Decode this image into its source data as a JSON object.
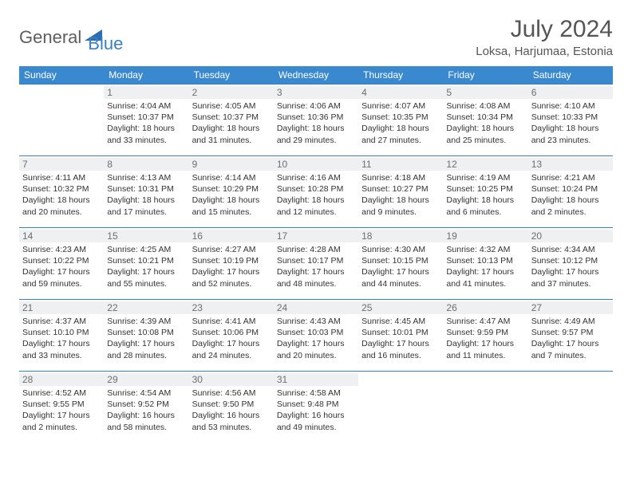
{
  "logo": {
    "text1": "General",
    "text2": "Blue"
  },
  "title": "July 2024",
  "location": "Loksa, Harjumaa, Estonia",
  "colors": {
    "header_bg": "#3a89cf",
    "row_border": "#3a7fc4",
    "daynum_bg": "#eef0f1",
    "logo_gray": "#5e5e5e",
    "logo_blue": "#3a7fc4"
  },
  "weekdays": [
    "Sunday",
    "Monday",
    "Tuesday",
    "Wednesday",
    "Thursday",
    "Friday",
    "Saturday"
  ],
  "weeks": [
    [
      null,
      {
        "n": "1",
        "sr": "4:04 AM",
        "ss": "10:37 PM",
        "dl": "18 hours and 33 minutes."
      },
      {
        "n": "2",
        "sr": "4:05 AM",
        "ss": "10:37 PM",
        "dl": "18 hours and 31 minutes."
      },
      {
        "n": "3",
        "sr": "4:06 AM",
        "ss": "10:36 PM",
        "dl": "18 hours and 29 minutes."
      },
      {
        "n": "4",
        "sr": "4:07 AM",
        "ss": "10:35 PM",
        "dl": "18 hours and 27 minutes."
      },
      {
        "n": "5",
        "sr": "4:08 AM",
        "ss": "10:34 PM",
        "dl": "18 hours and 25 minutes."
      },
      {
        "n": "6",
        "sr": "4:10 AM",
        "ss": "10:33 PM",
        "dl": "18 hours and 23 minutes."
      }
    ],
    [
      {
        "n": "7",
        "sr": "4:11 AM",
        "ss": "10:32 PM",
        "dl": "18 hours and 20 minutes."
      },
      {
        "n": "8",
        "sr": "4:13 AM",
        "ss": "10:31 PM",
        "dl": "18 hours and 17 minutes."
      },
      {
        "n": "9",
        "sr": "4:14 AM",
        "ss": "10:29 PM",
        "dl": "18 hours and 15 minutes."
      },
      {
        "n": "10",
        "sr": "4:16 AM",
        "ss": "10:28 PM",
        "dl": "18 hours and 12 minutes."
      },
      {
        "n": "11",
        "sr": "4:18 AM",
        "ss": "10:27 PM",
        "dl": "18 hours and 9 minutes."
      },
      {
        "n": "12",
        "sr": "4:19 AM",
        "ss": "10:25 PM",
        "dl": "18 hours and 6 minutes."
      },
      {
        "n": "13",
        "sr": "4:21 AM",
        "ss": "10:24 PM",
        "dl": "18 hours and 2 minutes."
      }
    ],
    [
      {
        "n": "14",
        "sr": "4:23 AM",
        "ss": "10:22 PM",
        "dl": "17 hours and 59 minutes."
      },
      {
        "n": "15",
        "sr": "4:25 AM",
        "ss": "10:21 PM",
        "dl": "17 hours and 55 minutes."
      },
      {
        "n": "16",
        "sr": "4:27 AM",
        "ss": "10:19 PM",
        "dl": "17 hours and 52 minutes."
      },
      {
        "n": "17",
        "sr": "4:28 AM",
        "ss": "10:17 PM",
        "dl": "17 hours and 48 minutes."
      },
      {
        "n": "18",
        "sr": "4:30 AM",
        "ss": "10:15 PM",
        "dl": "17 hours and 44 minutes."
      },
      {
        "n": "19",
        "sr": "4:32 AM",
        "ss": "10:13 PM",
        "dl": "17 hours and 41 minutes."
      },
      {
        "n": "20",
        "sr": "4:34 AM",
        "ss": "10:12 PM",
        "dl": "17 hours and 37 minutes."
      }
    ],
    [
      {
        "n": "21",
        "sr": "4:37 AM",
        "ss": "10:10 PM",
        "dl": "17 hours and 33 minutes."
      },
      {
        "n": "22",
        "sr": "4:39 AM",
        "ss": "10:08 PM",
        "dl": "17 hours and 28 minutes."
      },
      {
        "n": "23",
        "sr": "4:41 AM",
        "ss": "10:06 PM",
        "dl": "17 hours and 24 minutes."
      },
      {
        "n": "24",
        "sr": "4:43 AM",
        "ss": "10:03 PM",
        "dl": "17 hours and 20 minutes."
      },
      {
        "n": "25",
        "sr": "4:45 AM",
        "ss": "10:01 PM",
        "dl": "17 hours and 16 minutes."
      },
      {
        "n": "26",
        "sr": "4:47 AM",
        "ss": "9:59 PM",
        "dl": "17 hours and 11 minutes."
      },
      {
        "n": "27",
        "sr": "4:49 AM",
        "ss": "9:57 PM",
        "dl": "17 hours and 7 minutes."
      }
    ],
    [
      {
        "n": "28",
        "sr": "4:52 AM",
        "ss": "9:55 PM",
        "dl": "17 hours and 2 minutes."
      },
      {
        "n": "29",
        "sr": "4:54 AM",
        "ss": "9:52 PM",
        "dl": "16 hours and 58 minutes."
      },
      {
        "n": "30",
        "sr": "4:56 AM",
        "ss": "9:50 PM",
        "dl": "16 hours and 53 minutes."
      },
      {
        "n": "31",
        "sr": "4:58 AM",
        "ss": "9:48 PM",
        "dl": "16 hours and 49 minutes."
      },
      null,
      null,
      null
    ]
  ],
  "labels": {
    "sunrise": "Sunrise:",
    "sunset": "Sunset:",
    "daylight": "Daylight:"
  }
}
